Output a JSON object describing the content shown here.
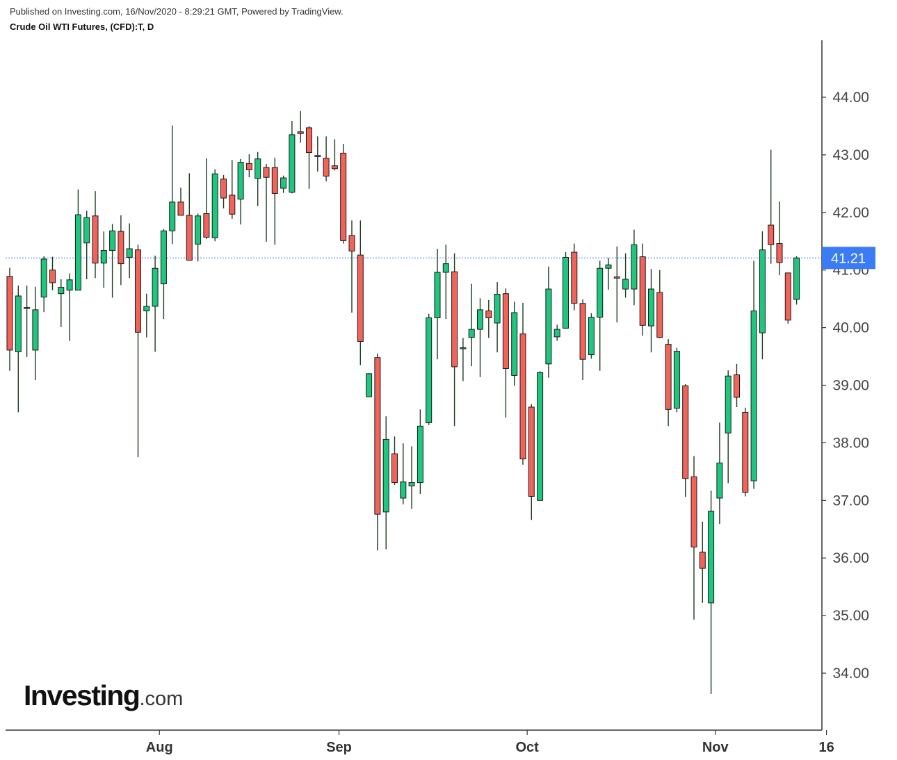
{
  "header": {
    "published": "Published on Investing.com, 16/Nov/2020 - 8:29:21 GMT, Powered by TradingView.",
    "symbol": "Crude Oil WTI Futures, (CFD):T, D"
  },
  "logo": {
    "brand": "Investing",
    "suffix": ".com"
  },
  "colors": {
    "up": "#1ec67e",
    "down": "#f2635a",
    "wick": "#1f3a22",
    "last_price": "#3b7cf5",
    "axis": "#333333"
  },
  "chart_data": {
    "type": "candlestick",
    "last_price": 41.21,
    "last_price_label": "41.21",
    "ylim": [
      33.0,
      45.0
    ],
    "y_ticks": [
      {
        "value": 34,
        "label": "34.00"
      },
      {
        "value": 35,
        "label": "35.00"
      },
      {
        "value": 36,
        "label": "36.00"
      },
      {
        "value": 37,
        "label": "37.00"
      },
      {
        "value": 38,
        "label": "38.00"
      },
      {
        "value": 39,
        "label": "39.00"
      },
      {
        "value": 40,
        "label": "40.00"
      },
      {
        "value": 41,
        "label": "41.00"
      },
      {
        "value": 42,
        "label": "42.00"
      },
      {
        "value": 43,
        "label": "43.00"
      },
      {
        "value": 44,
        "label": "44.00"
      }
    ],
    "x_ticks": [
      {
        "index": 17.5,
        "label": "Aug"
      },
      {
        "index": 38.5,
        "label": "Sep"
      },
      {
        "index": 60.5,
        "label": "Oct"
      },
      {
        "index": 82.5,
        "label": "Nov"
      },
      {
        "index": 95.5,
        "label": "16"
      }
    ],
    "candles": [
      [
        40.89,
        41.04,
        39.25,
        39.61
      ],
      [
        39.58,
        40.73,
        38.53,
        40.55
      ],
      [
        40.35,
        40.73,
        39.49,
        40.34
      ],
      [
        39.61,
        40.71,
        39.09,
        40.31
      ],
      [
        40.53,
        41.24,
        40.27,
        41.19
      ],
      [
        41.0,
        41.23,
        40.65,
        40.78
      ],
      [
        40.59,
        40.84,
        40.01,
        40.7
      ],
      [
        40.65,
        40.94,
        39.77,
        40.83
      ],
      [
        40.65,
        42.4,
        40.65,
        41.96
      ],
      [
        41.47,
        42.03,
        40.84,
        41.91
      ],
      [
        41.94,
        42.37,
        40.86,
        41.12
      ],
      [
        41.12,
        41.67,
        40.69,
        41.34
      ],
      [
        41.34,
        41.8,
        40.52,
        41.68
      ],
      [
        41.67,
        41.95,
        40.74,
        41.11
      ],
      [
        41.22,
        41.81,
        40.86,
        41.37
      ],
      [
        41.35,
        41.44,
        37.75,
        39.92
      ],
      [
        40.29,
        40.59,
        39.83,
        40.37
      ],
      [
        40.37,
        41.25,
        39.58,
        41.03
      ],
      [
        40.76,
        41.71,
        40.15,
        41.68
      ],
      [
        41.68,
        43.51,
        41.45,
        42.18
      ],
      [
        42.18,
        42.43,
        41.95,
        41.95
      ],
      [
        41.95,
        42.68,
        41.23,
        41.17
      ],
      [
        41.45,
        41.98,
        41.15,
        41.94
      ],
      [
        41.98,
        42.94,
        41.54,
        41.57
      ],
      [
        41.56,
        42.75,
        41.5,
        42.67
      ],
      [
        42.58,
        42.65,
        42.07,
        42.25
      ],
      [
        42.3,
        42.91,
        41.89,
        41.97
      ],
      [
        42.23,
        42.93,
        41.79,
        42.87
      ],
      [
        42.85,
        43.01,
        42.61,
        42.74
      ],
      [
        42.59,
        43.05,
        42.11,
        42.93
      ],
      [
        42.78,
        42.84,
        41.49,
        42.61
      ],
      [
        42.78,
        42.95,
        41.44,
        42.33
      ],
      [
        42.42,
        42.64,
        42.34,
        42.6
      ],
      [
        42.35,
        43.59,
        42.33,
        43.35
      ],
      [
        43.4,
        43.76,
        43.21,
        43.37
      ],
      [
        43.47,
        43.5,
        42.41,
        43.04
      ],
      [
        42.99,
        43.32,
        42.71,
        42.97
      ],
      [
        42.94,
        43.32,
        42.54,
        42.63
      ],
      [
        42.81,
        43.27,
        42.73,
        42.76
      ],
      [
        43.03,
        43.19,
        41.46,
        41.51
      ],
      [
        41.6,
        41.86,
        40.26,
        41.33
      ],
      [
        41.26,
        41.86,
        39.35,
        39.76
      ],
      [
        38.8,
        39.21,
        38.8,
        39.2
      ],
      [
        39.48,
        39.55,
        36.13,
        36.76
      ],
      [
        36.8,
        38.46,
        36.15,
        38.06
      ],
      [
        37.81,
        38.11,
        37.27,
        37.31
      ],
      [
        37.04,
        37.99,
        36.93,
        37.32
      ],
      [
        37.25,
        37.94,
        36.85,
        37.31
      ],
      [
        37.31,
        38.58,
        37.11,
        38.29
      ],
      [
        38.35,
        40.24,
        38.31,
        40.17
      ],
      [
        40.17,
        41.37,
        39.45,
        40.96
      ],
      [
        40.96,
        41.44,
        40.15,
        41.11
      ],
      [
        40.97,
        41.29,
        38.29,
        39.32
      ],
      [
        39.64,
        39.82,
        39.07,
        39.65
      ],
      [
        39.83,
        40.76,
        39.33,
        39.97
      ],
      [
        39.97,
        40.51,
        39.14,
        40.31
      ],
      [
        40.29,
        40.48,
        39.82,
        40.17
      ],
      [
        40.08,
        40.79,
        39.57,
        40.58
      ],
      [
        40.59,
        40.68,
        38.44,
        39.29
      ],
      [
        39.17,
        40.45,
        38.99,
        40.26
      ],
      [
        39.89,
        40.43,
        37.62,
        37.72
      ],
      [
        38.62,
        38.67,
        36.66,
        37.07
      ],
      [
        37.0,
        39.24,
        37.0,
        39.22
      ],
      [
        39.37,
        41.06,
        39.13,
        40.67
      ],
      [
        39.84,
        40.05,
        39.77,
        39.97
      ],
      [
        39.99,
        41.31,
        39.98,
        41.22
      ],
      [
        41.31,
        41.46,
        40.3,
        40.42
      ],
      [
        40.42,
        40.49,
        39.09,
        39.45
      ],
      [
        39.53,
        40.25,
        39.46,
        40.18
      ],
      [
        40.18,
        41.16,
        39.25,
        41.03
      ],
      [
        41.03,
        41.21,
        40.66,
        41.09
      ],
      [
        40.88,
        41.41,
        40.09,
        40.86
      ],
      [
        40.67,
        41.29,
        40.52,
        40.84
      ],
      [
        40.67,
        41.7,
        40.39,
        41.44
      ],
      [
        41.23,
        41.46,
        39.86,
        40.04
      ],
      [
        40.03,
        41.02,
        39.57,
        40.67
      ],
      [
        40.61,
        41.0,
        39.82,
        39.83
      ],
      [
        39.71,
        39.8,
        38.29,
        38.58
      ],
      [
        38.6,
        39.65,
        38.53,
        39.59
      ],
      [
        38.99,
        39.02,
        37.06,
        37.38
      ],
      [
        37.41,
        37.77,
        34.93,
        36.19
      ],
      [
        36.1,
        36.63,
        35.22,
        35.82
      ],
      [
        35.22,
        37.17,
        33.64,
        36.81
      ],
      [
        37.04,
        38.35,
        36.59,
        37.65
      ],
      [
        38.17,
        39.26,
        37.3,
        39.16
      ],
      [
        39.18,
        39.37,
        38.62,
        38.79
      ],
      [
        38.53,
        38.61,
        37.07,
        37.14
      ],
      [
        37.34,
        41.16,
        37.2,
        40.29
      ],
      [
        39.91,
        41.67,
        39.45,
        41.35
      ],
      [
        41.78,
        43.09,
        41.11,
        41.44
      ],
      [
        41.46,
        42.19,
        40.91,
        41.13
      ],
      [
        40.95,
        40.95,
        40.07,
        40.13
      ],
      [
        40.49,
        41.24,
        40.4,
        41.21
      ]
    ]
  }
}
